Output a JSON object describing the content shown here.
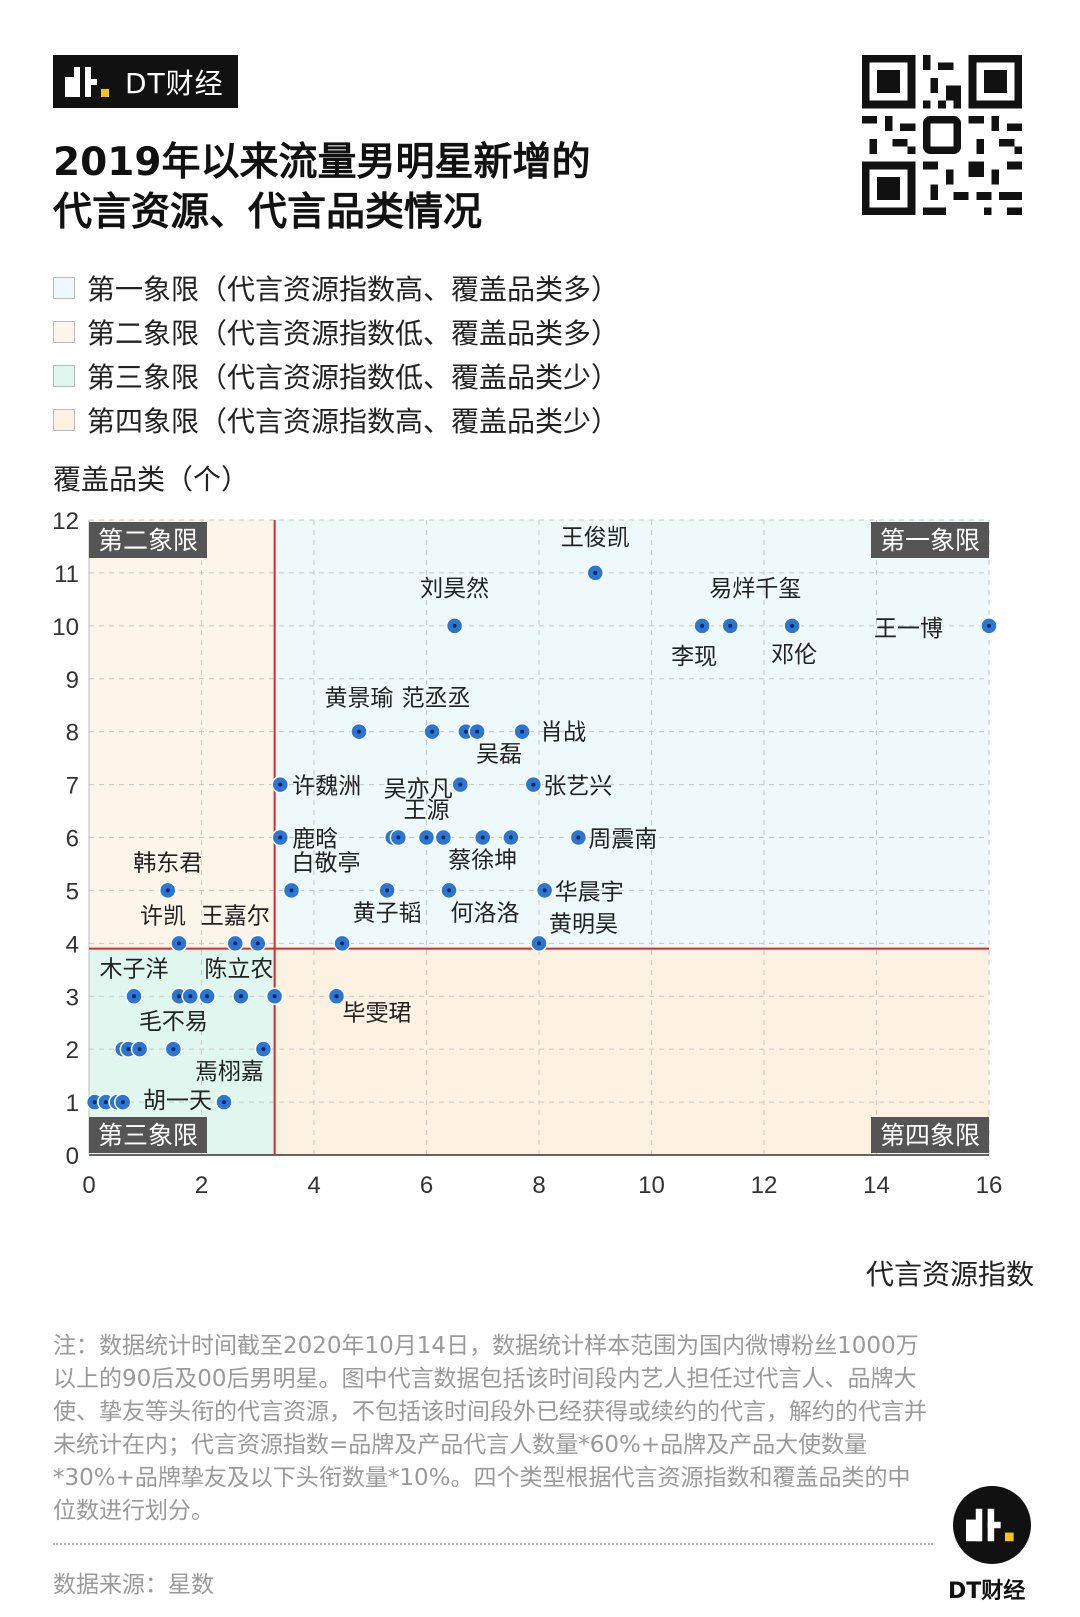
{
  "brand": {
    "name": "DT财经"
  },
  "title": {
    "line1": "2019年以来流量男明星新增的",
    "line2": "代言资源、代言品类情况"
  },
  "legend": [
    {
      "label": "第一象限（代言资源指数高、覆盖品类多）",
      "color": "#eef9fb"
    },
    {
      "label": "第二象限（代言资源指数低、覆盖品类多）",
      "color": "#fdf5ea"
    },
    {
      "label": "第三象限（代言资源指数低、覆盖品类少）",
      "color": "#dff7ee"
    },
    {
      "label": "第四象限（代言资源指数高、覆盖品类少）",
      "color": "#fdf2e2"
    }
  ],
  "chart_data": {
    "type": "scatter",
    "ylabel": "覆盖品类（个）",
    "xlabel": "代言资源指数",
    "xlim": [
      0,
      16
    ],
    "ylim": [
      0,
      12
    ],
    "x_ticks": [
      0,
      2,
      4,
      6,
      8,
      10,
      12,
      14,
      16
    ],
    "y_ticks": [
      0,
      1,
      2,
      3,
      4,
      5,
      6,
      7,
      8,
      9,
      10,
      11,
      12
    ],
    "grid": true,
    "median_lines": {
      "x": 3.3,
      "y": 3.9
    },
    "quadrant_labels": {
      "q1": "第一象限",
      "q2": "第二象限",
      "q3": "第三象限",
      "q4": "第四象限"
    },
    "quadrant_colors": {
      "q1": "#eef9fb",
      "q2": "#fdf5ea",
      "q3": "#dff7ee",
      "q4": "#fdf2e2"
    },
    "point_color": "#2b75d4",
    "median_line_color": "#d92b2b",
    "points": [
      {
        "x": 9.0,
        "y": 11,
        "label": "王俊凯"
      },
      {
        "x": 6.5,
        "y": 10,
        "label": "刘昊然"
      },
      {
        "x": 10.9,
        "y": 10,
        "label": "李现"
      },
      {
        "x": 11.4,
        "y": 10,
        "label": "易烊千玺"
      },
      {
        "x": 12.5,
        "y": 10,
        "label": "邓伦"
      },
      {
        "x": 16.0,
        "y": 10,
        "label": "王一博"
      },
      {
        "x": 4.8,
        "y": 8,
        "label": "黄景瑜"
      },
      {
        "x": 6.1,
        "y": 8,
        "label": "范丞丞"
      },
      {
        "x": 6.7,
        "y": 8,
        "label": ""
      },
      {
        "x": 6.9,
        "y": 8,
        "label": "吴磊"
      },
      {
        "x": 7.7,
        "y": 8,
        "label": "肖战"
      },
      {
        "x": 3.4,
        "y": 7,
        "label": "许魏洲"
      },
      {
        "x": 6.6,
        "y": 7,
        "label": "吴亦凡"
      },
      {
        "x": 7.9,
        "y": 7,
        "label": "张艺兴"
      },
      {
        "x": 3.4,
        "y": 6,
        "label": "鹿晗"
      },
      {
        "x": 5.4,
        "y": 6,
        "label": ""
      },
      {
        "x": 5.5,
        "y": 6,
        "label": ""
      },
      {
        "x": 6.0,
        "y": 6,
        "label": "王源"
      },
      {
        "x": 6.3,
        "y": 6,
        "label": ""
      },
      {
        "x": 7.0,
        "y": 6,
        "label": "蔡徐坤"
      },
      {
        "x": 7.5,
        "y": 6,
        "label": ""
      },
      {
        "x": 8.7,
        "y": 6,
        "label": "周震南"
      },
      {
        "x": 1.4,
        "y": 5,
        "label": "韩东君"
      },
      {
        "x": 3.6,
        "y": 5,
        "label": "白敬亭"
      },
      {
        "x": 5.3,
        "y": 5,
        "label": "黄子韬"
      },
      {
        "x": 6.4,
        "y": 5,
        "label": "何洛洛"
      },
      {
        "x": 8.1,
        "y": 5,
        "label": "华晨宇"
      },
      {
        "x": 1.6,
        "y": 4,
        "label": "许凯"
      },
      {
        "x": 2.6,
        "y": 4,
        "label": "王嘉尔"
      },
      {
        "x": 3.0,
        "y": 4,
        "label": ""
      },
      {
        "x": 4.5,
        "y": 4,
        "label": ""
      },
      {
        "x": 8.0,
        "y": 4,
        "label": "黄明昊"
      },
      {
        "x": 0.8,
        "y": 3,
        "label": "木子洋"
      },
      {
        "x": 1.6,
        "y": 3,
        "label": ""
      },
      {
        "x": 1.8,
        "y": 3,
        "label": ""
      },
      {
        "x": 2.1,
        "y": 3,
        "label": ""
      },
      {
        "x": 2.7,
        "y": 3,
        "label": "陈立农"
      },
      {
        "x": 3.3,
        "y": 3,
        "label": ""
      },
      {
        "x": 4.4,
        "y": 3,
        "label": "毕雯珺"
      },
      {
        "x": 0.6,
        "y": 2,
        "label": ""
      },
      {
        "x": 0.7,
        "y": 2,
        "label": ""
      },
      {
        "x": 0.9,
        "y": 2,
        "label": ""
      },
      {
        "x": 1.5,
        "y": 2,
        "label": "毛不易"
      },
      {
        "x": 3.1,
        "y": 2,
        "label": "焉栩嘉"
      },
      {
        "x": 0.1,
        "y": 1,
        "label": ""
      },
      {
        "x": 0.3,
        "y": 1,
        "label": ""
      },
      {
        "x": 0.5,
        "y": 1,
        "label": ""
      },
      {
        "x": 0.6,
        "y": 1,
        "label": ""
      },
      {
        "x": 2.4,
        "y": 1,
        "label": "胡一天"
      }
    ]
  },
  "note": "注：数据统计时间截至2020年10月14日，数据统计样本范围为国内微博粉丝1000万以上的90后及00后男明星。图中代言数据包括该时间段内艺人担任过代言人、品牌大使、挚友等头衔的代言资源，不包括该时间段外已经获得或续约的代言，解约的代言并未统计在内；代言资源指数=品牌及产品代言人数量*60%+品牌及产品大使数量*30%+品牌挚友及以下头衔数量*10%。四个类型根据代言资源指数和覆盖品类的中位数进行划分。",
  "source": "数据来源：星数",
  "footer_brand": "DT财经"
}
